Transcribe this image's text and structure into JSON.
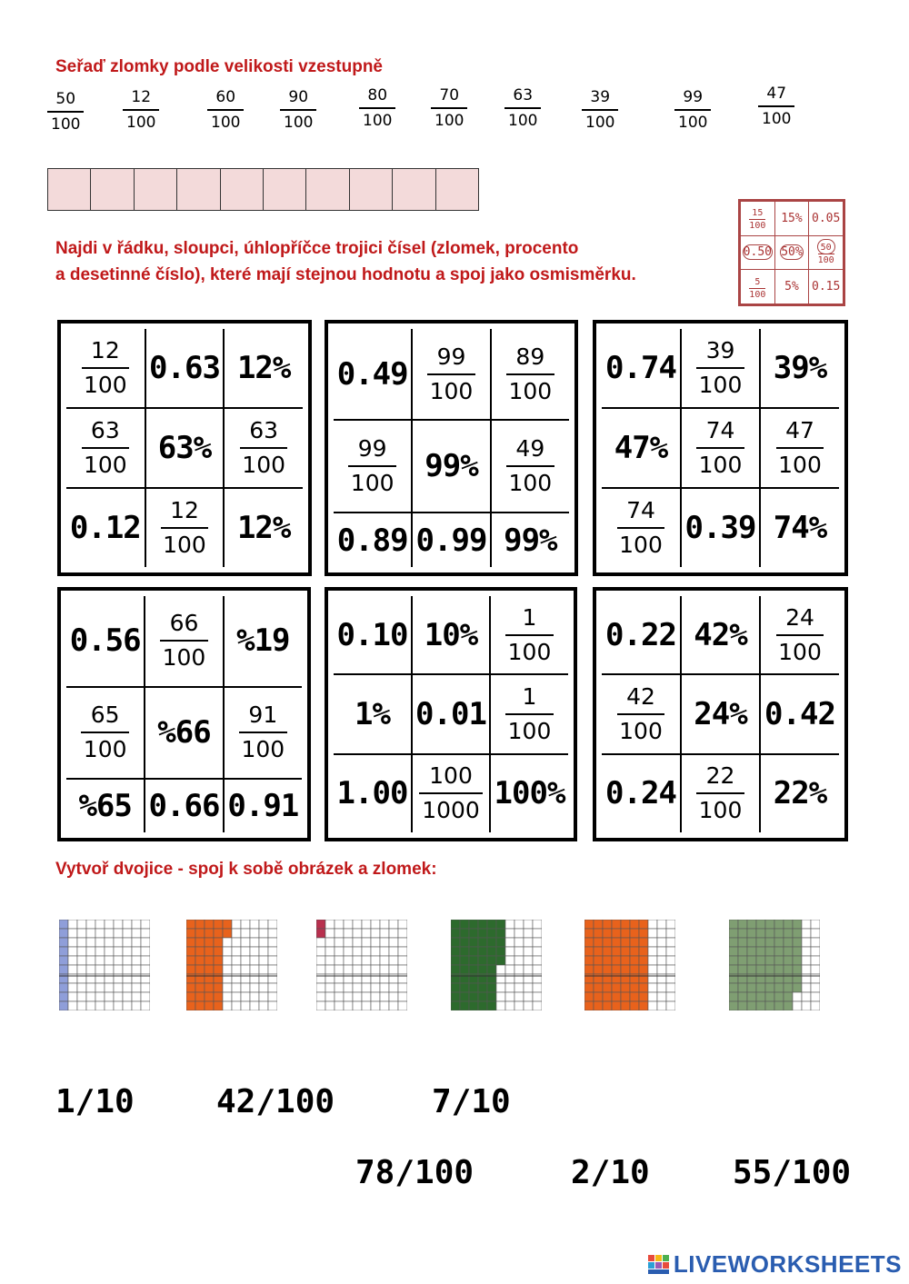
{
  "section1": {
    "heading": "Seřaď zlomky podle velikosti vzestupně",
    "fractions": [
      {
        "num": "50",
        "den": "100"
      },
      {
        "num": "12",
        "den": "100"
      },
      {
        "num": "60",
        "den": "100"
      },
      {
        "num": "90",
        "den": "100"
      },
      {
        "num": "80",
        "den": "100"
      },
      {
        "num": "70",
        "den": "100"
      },
      {
        "num": "63",
        "den": "100"
      },
      {
        "num": "39",
        "den": "100"
      },
      {
        "num": "99",
        "den": "100"
      },
      {
        "num": "47",
        "den": "100"
      }
    ],
    "answer_cells": 10
  },
  "section2": {
    "heading_line1": "Najdi v řádku, sloupci, úhlopříčce trojici čísel (zlomek, procento",
    "heading_line2": "a desetinné číslo), které mají stejnou hodnotu a spoj jako osmisměrku.",
    "example": [
      [
        {
          "num": "15",
          "den": "100"
        },
        "15%",
        "0.05"
      ],
      [
        "0.50",
        "50%",
        {
          "num": "50",
          "den": "100"
        }
      ],
      [
        {
          "num": "5",
          "den": "100"
        },
        "5%",
        "0.15"
      ]
    ],
    "grids": [
      [
        [
          {
            "num": "12",
            "den": "100"
          },
          "0.63",
          "12%"
        ],
        [
          {
            "num": "63",
            "den": "100"
          },
          "63%",
          {
            "num": "63",
            "den": "100"
          }
        ],
        [
          "0.12",
          {
            "num": "12",
            "den": "100"
          },
          "12%"
        ]
      ],
      [
        [
          "0.49",
          {
            "num": "99",
            "den": "100"
          },
          {
            "num": "89",
            "den": "100"
          }
        ],
        [
          {
            "num": "99",
            "den": "100"
          },
          "99%",
          {
            "num": "49",
            "den": "100"
          }
        ],
        [
          "0.89",
          "0.99",
          "99%"
        ]
      ],
      [
        [
          "0.74",
          {
            "num": "39",
            "den": "100"
          },
          "39%"
        ],
        [
          "47%",
          {
            "num": "74",
            "den": "100"
          },
          {
            "num": "47",
            "den": "100"
          }
        ],
        [
          {
            "num": "74",
            "den": "100"
          },
          "0.39",
          "74%"
        ]
      ],
      [
        [
          "0.56",
          {
            "num": "66",
            "den": "100"
          },
          "%19"
        ],
        [
          {
            "num": "65",
            "den": "100"
          },
          "%66",
          {
            "num": "91",
            "den": "100"
          }
        ],
        [
          "%65",
          "0.66",
          "0.91"
        ]
      ],
      [
        [
          "0.10",
          "10%",
          {
            "num": "1",
            "den": "100"
          }
        ],
        [
          "1%",
          "0.01",
          {
            "num": "1",
            "den": "100"
          }
        ],
        [
          "1.00",
          {
            "num": "100",
            "den": "1000"
          },
          "100%"
        ]
      ],
      [
        [
          "0.22",
          "42%",
          {
            "num": "24",
            "den": "100"
          }
        ],
        [
          {
            "num": "42",
            "den": "100"
          },
          "24%",
          "0.42"
        ],
        [
          "0.24",
          {
            "num": "22",
            "den": "100"
          },
          "22%"
        ]
      ]
    ]
  },
  "section3": {
    "heading": "Vytvoř dvojice - spoj k sobě obrázek a zlomek:",
    "pictures": [
      {
        "name": "grid-picture-1",
        "color": "#8f9ed9",
        "filled": 10
      },
      {
        "name": "grid-picture-2",
        "color": "#e8621c",
        "filled": 42
      },
      {
        "name": "grid-picture-3",
        "color": "#b8304e",
        "filled": 2
      },
      {
        "name": "grid-picture-4",
        "color": "#2d6a2d",
        "filled": 55
      },
      {
        "name": "grid-picture-5",
        "color": "#e8621c",
        "filled": 70
      },
      {
        "name": "grid-picture-6",
        "color": "#7f9e72",
        "filled": 78
      }
    ],
    "fractions_row1": [
      "1/10",
      "42/100",
      "7/10"
    ],
    "fractions_row2": [
      "78/100",
      "2/10",
      "55/100"
    ]
  },
  "footer": {
    "logo_text": "LIVEWORKSHEETS"
  }
}
